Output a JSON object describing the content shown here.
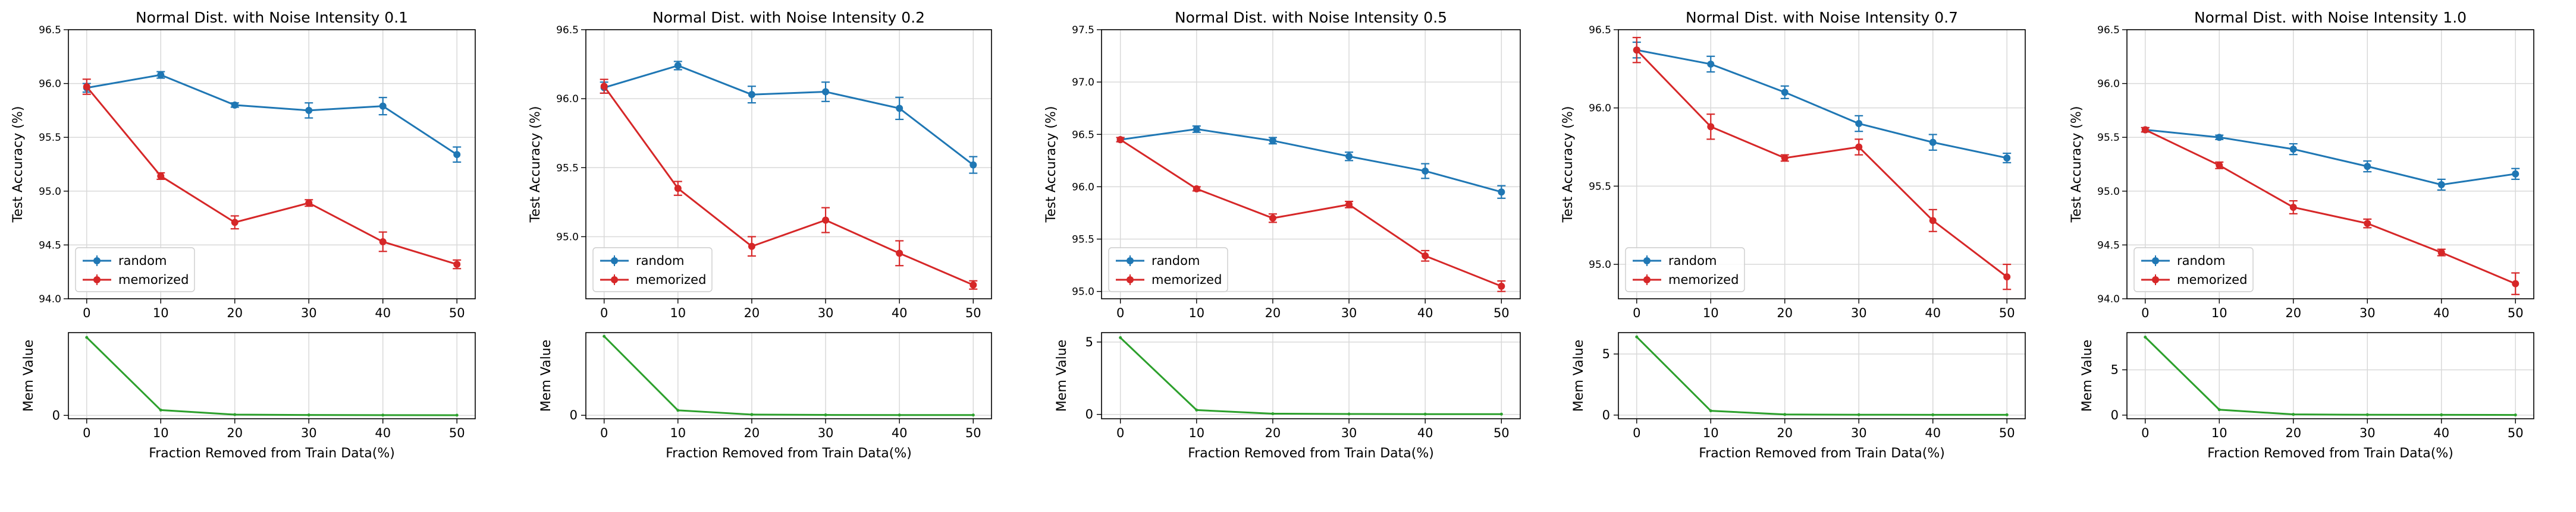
{
  "chart_data": [
    {
      "type": "line",
      "title": "Normal Dist. with Noise Intensity 0.1",
      "ylabel": "Test Accuracy (%)",
      "x": [
        0,
        10,
        20,
        30,
        40,
        50
      ],
      "xticks": [
        "0",
        "10",
        "20",
        "30",
        "40",
        "50"
      ],
      "ylim": [
        94.0,
        96.5
      ],
      "yticks": [
        "94.0",
        "94.5",
        "95.0",
        "95.5",
        "96.0",
        "96.5"
      ],
      "series": [
        {
          "name": "random",
          "color": "#1f77b4",
          "values": [
            95.96,
            96.08,
            95.8,
            95.75,
            95.79,
            95.34
          ],
          "errors": [
            0.04,
            0.03,
            0.02,
            0.07,
            0.08,
            0.07
          ]
        },
        {
          "name": "memorized",
          "color": "#d62728",
          "values": [
            95.97,
            95.14,
            94.71,
            94.89,
            94.53,
            94.32
          ],
          "errors": [
            0.07,
            0.03,
            0.06,
            0.03,
            0.09,
            0.04
          ]
        }
      ],
      "legend": "lower-left",
      "grid": true,
      "mem": {
        "ylabel": "Mem Value",
        "xlabel": "Fraction Removed from Train Data(%)",
        "color": "#2ca02c",
        "values": [
          8.1,
          0.55,
          0.08,
          0.04,
          0.03,
          0.02
        ],
        "ylim": [
          -0.35,
          8.6
        ],
        "yticks": [
          "0"
        ]
      }
    },
    {
      "type": "line",
      "title": "Normal Dist. with Noise Intensity 0.2",
      "ylabel": "Test Accuracy (%)",
      "x": [
        0,
        10,
        20,
        30,
        40,
        50
      ],
      "xticks": [
        "0",
        "10",
        "20",
        "30",
        "40",
        "50"
      ],
      "ylim": [
        94.55,
        96.5
      ],
      "yticks": [
        "95.0",
        "95.5",
        "96.0",
        "96.5"
      ],
      "series": [
        {
          "name": "random",
          "color": "#1f77b4",
          "values": [
            96.08,
            96.24,
            96.03,
            96.05,
            95.93,
            95.52
          ],
          "errors": [
            0.04,
            0.03,
            0.06,
            0.07,
            0.08,
            0.06
          ]
        },
        {
          "name": "memorized",
          "color": "#d62728",
          "values": [
            96.09,
            95.35,
            94.93,
            95.12,
            94.88,
            94.65
          ],
          "errors": [
            0.05,
            0.05,
            0.07,
            0.09,
            0.09,
            0.03
          ]
        }
      ],
      "legend": "lower-left",
      "grid": true,
      "mem": {
        "ylabel": "Mem Value",
        "xlabel": "Fraction Removed from Train Data(%)",
        "color": "#2ca02c",
        "values": [
          6.4,
          0.4,
          0.06,
          0.03,
          0.02,
          0.02
        ],
        "ylim": [
          -0.28,
          6.7
        ],
        "yticks": [
          "0"
        ]
      }
    },
    {
      "type": "line",
      "title": "Normal Dist. with Noise Intensity 0.5",
      "ylabel": "Test Accuracy (%)",
      "x": [
        0,
        10,
        20,
        30,
        40,
        50
      ],
      "xticks": [
        "0",
        "10",
        "20",
        "30",
        "40",
        "50"
      ],
      "ylim": [
        94.93,
        97.5
      ],
      "yticks": [
        "95.0",
        "95.5",
        "96.0",
        "96.5",
        "97.0",
        "97.5"
      ],
      "series": [
        {
          "name": "random",
          "color": "#1f77b4",
          "values": [
            96.45,
            96.55,
            96.44,
            96.29,
            96.15,
            95.95
          ],
          "errors": [
            0.02,
            0.03,
            0.03,
            0.04,
            0.07,
            0.06
          ]
        },
        {
          "name": "memorized",
          "color": "#d62728",
          "values": [
            96.45,
            95.98,
            95.7,
            95.83,
            95.34,
            95.05
          ],
          "errors": [
            0.02,
            0.02,
            0.04,
            0.03,
            0.05,
            0.05
          ]
        }
      ],
      "legend": "lower-left",
      "grid": true,
      "mem": {
        "ylabel": "Mem Value",
        "xlabel": "Fraction Removed from Train Data(%)",
        "color": "#2ca02c",
        "values": [
          5.3,
          0.3,
          0.05,
          0.03,
          0.02,
          0.02
        ],
        "ylim": [
          -0.3,
          5.65
        ],
        "yticks": [
          "0",
          "5"
        ]
      }
    },
    {
      "type": "line",
      "title": "Normal Dist. with Noise Intensity 0.7",
      "ylabel": "Test Accuracy (%)",
      "x": [
        0,
        10,
        20,
        30,
        40,
        50
      ],
      "xticks": [
        "0",
        "10",
        "20",
        "30",
        "40",
        "50"
      ],
      "ylim": [
        94.78,
        96.5
      ],
      "yticks": [
        "95.0",
        "95.5",
        "96.0",
        "96.5"
      ],
      "series": [
        {
          "name": "random",
          "color": "#1f77b4",
          "values": [
            96.37,
            96.28,
            96.1,
            95.9,
            95.78,
            95.68
          ],
          "errors": [
            0.05,
            0.05,
            0.04,
            0.05,
            0.05,
            0.03
          ]
        },
        {
          "name": "memorized",
          "color": "#d62728",
          "values": [
            96.37,
            95.88,
            95.68,
            95.75,
            95.28,
            94.92
          ],
          "errors": [
            0.08,
            0.08,
            0.02,
            0.05,
            0.07,
            0.08
          ]
        }
      ],
      "legend": "lower-left",
      "grid": true,
      "mem": {
        "ylabel": "Mem Value",
        "xlabel": "Fraction Removed from Train Data(%)",
        "color": "#2ca02c",
        "values": [
          6.4,
          0.35,
          0.05,
          0.03,
          0.02,
          0.02
        ],
        "ylim": [
          -0.3,
          6.75
        ],
        "yticks": [
          "0",
          "5"
        ]
      }
    },
    {
      "type": "line",
      "title": "Normal Dist. with Noise Intensity 1.0",
      "ylabel": "Test Accuracy (%)",
      "x": [
        0,
        10,
        20,
        30,
        40,
        50
      ],
      "xticks": [
        "0",
        "10",
        "20",
        "30",
        "40",
        "50"
      ],
      "ylim": [
        94.0,
        96.5
      ],
      "yticks": [
        "94.0",
        "94.5",
        "95.0",
        "95.5",
        "96.0",
        "96.5"
      ],
      "series": [
        {
          "name": "random",
          "color": "#1f77b4",
          "values": [
            95.57,
            95.5,
            95.39,
            95.23,
            95.06,
            95.16
          ],
          "errors": [
            0.02,
            0.02,
            0.05,
            0.05,
            0.05,
            0.05
          ]
        },
        {
          "name": "memorized",
          "color": "#d62728",
          "values": [
            95.57,
            95.24,
            94.85,
            94.7,
            94.43,
            94.14
          ],
          "errors": [
            0.02,
            0.03,
            0.06,
            0.04,
            0.03,
            0.1
          ]
        }
      ],
      "legend": "lower-left",
      "grid": true,
      "mem": {
        "ylabel": "Mem Value",
        "xlabel": "Fraction Removed from Train Data(%)",
        "color": "#2ca02c",
        "values": [
          8.6,
          0.6,
          0.08,
          0.04,
          0.03,
          0.02
        ],
        "ylim": [
          -0.4,
          9.1
        ],
        "yticks": [
          "0",
          "5"
        ]
      }
    }
  ]
}
